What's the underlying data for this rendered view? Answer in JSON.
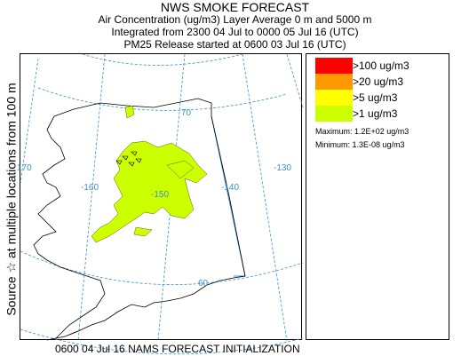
{
  "header": {
    "title": "NWS SMOKE FORECAST",
    "line1": "Air Concentration (ug/m3) Layer Average    0 m and  5000 m",
    "line2": "Integrated from 2300 04 Jul to 0000 05 Jul 16 (UTC)",
    "line3": "PM25 Release started at 0600 03 Jul 16 (UTC)"
  },
  "sidebar": {
    "text": "Source ☆  at multiple locations      from   100 m"
  },
  "map": {
    "grid_labels": [
      "170",
      "-160",
      "-150",
      "-140",
      "-130",
      "70",
      "60"
    ],
    "colors": {
      "grid": "#3a8fd0",
      "label": "#3a8fd0",
      "coast": "#000000",
      "border": "#3a8fd0",
      "smoke_fill": "#ccff00",
      "source": "#000000"
    }
  },
  "legend": {
    "items": [
      {
        "label": ">100 ug/m3",
        "color": "#ff0000"
      },
      {
        "label": ">20 ug/m3",
        "color": "#ff9900"
      },
      {
        "label": ">5 ug/m3",
        "color": "#ffff00"
      },
      {
        "label": ">1 ug/m3",
        "color": "#ccff00"
      }
    ],
    "maximum": "Maximum: 1.2E+02 ug/m3",
    "minimum": "Minimum: 1.3E-08 ug/m3"
  },
  "footer": {
    "text": "0600 04 Jul 16 NAMS FORECAST INITIALIZATION"
  }
}
